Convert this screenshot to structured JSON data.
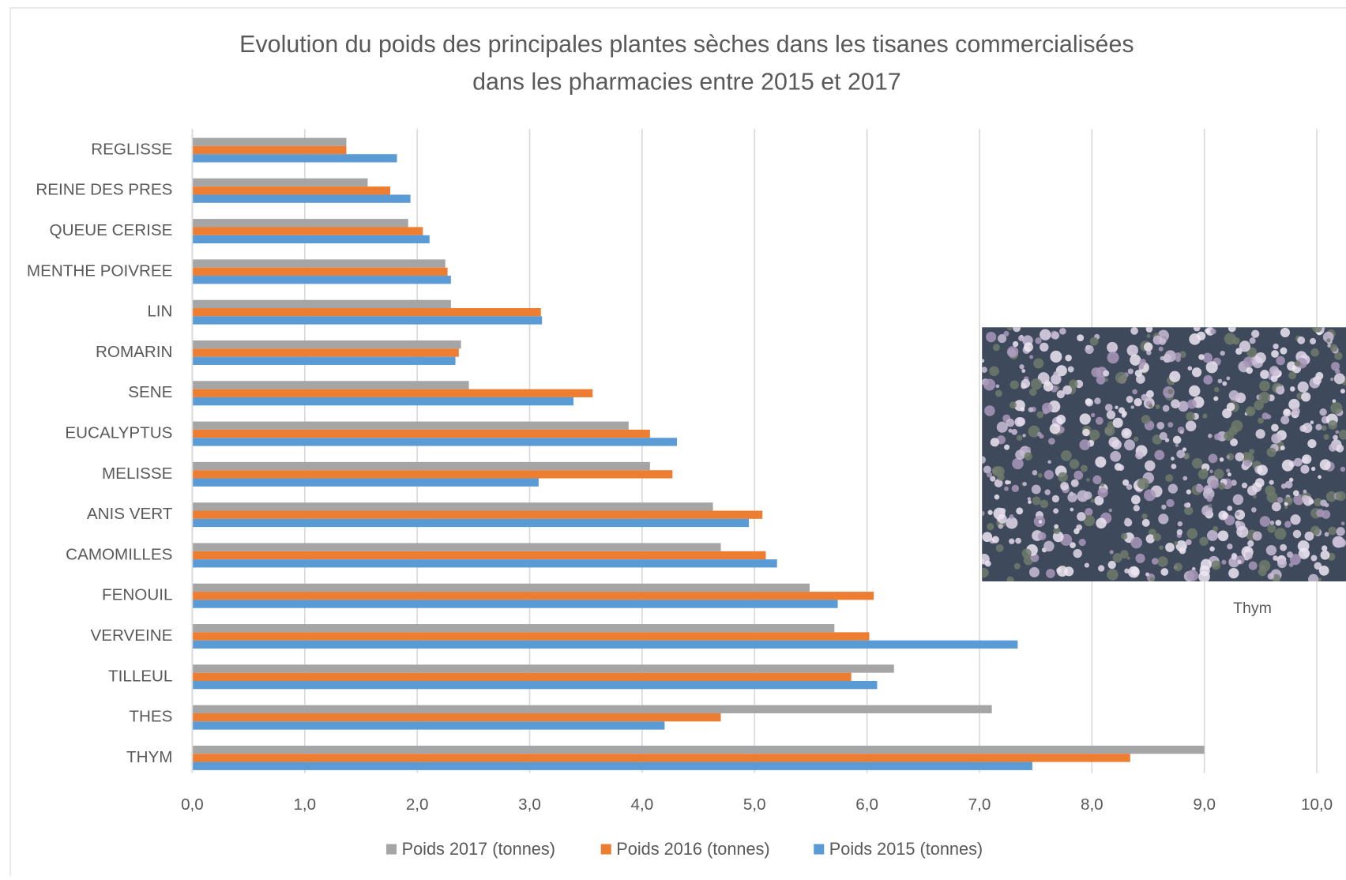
{
  "chart_data": {
    "type": "hbar",
    "title": [
      "Evolution du poids des principales plantes sèches dans les tisanes commercialisées",
      "dans les pharmacies entre 2015 et 2017"
    ],
    "annotation": "Thym",
    "categories": [
      "REGLISSE",
      "REINE DES PRES",
      "QUEUE CERISE",
      "MENTHE POIVREE",
      "LIN",
      "ROMARIN",
      "SENE",
      "EUCALYPTUS",
      "MELISSE",
      "ANIS VERT",
      "CAMOMILLES",
      "FENOUIL",
      "VERVEINE",
      "TILLEUL",
      "THES",
      "THYM"
    ],
    "series": [
      {
        "name": "Poids 2017 (tonnes)",
        "color": "#a5a5a5",
        "values": [
          1.37,
          1.56,
          1.92,
          2.25,
          2.3,
          2.39,
          2.46,
          3.88,
          4.07,
          4.63,
          4.7,
          5.49,
          5.71,
          6.24,
          7.11,
          9.0
        ]
      },
      {
        "name": "Poids 2016 (tonnes)",
        "color": "#ed7d31",
        "values": [
          1.37,
          1.76,
          2.05,
          2.27,
          3.1,
          2.37,
          3.56,
          4.07,
          4.27,
          5.07,
          5.1,
          6.06,
          6.02,
          5.86,
          4.7,
          8.34
        ]
      },
      {
        "name": "Poids 2015 (tonnes)",
        "color": "#5b9bd5",
        "values": [
          1.82,
          1.94,
          2.11,
          2.3,
          3.11,
          2.34,
          3.39,
          4.31,
          3.08,
          4.95,
          5.2,
          5.74,
          7.34,
          6.09,
          4.2,
          7.47
        ]
      }
    ],
    "xlim": [
      0,
      10
    ],
    "xticks": [
      {
        "value": 0,
        "label": "0,0"
      },
      {
        "value": 1,
        "label": "1,0"
      },
      {
        "value": 2,
        "label": "2,0"
      },
      {
        "value": 3,
        "label": "3,0"
      },
      {
        "value": 4,
        "label": "4,0"
      },
      {
        "value": 5,
        "label": "5,0"
      },
      {
        "value": 6,
        "label": "6,0"
      },
      {
        "value": 7,
        "label": "7,0"
      },
      {
        "value": 8,
        "label": "8,0"
      },
      {
        "value": 9,
        "label": "9,0"
      },
      {
        "value": 10,
        "label": "10,0"
      }
    ],
    "grid": true,
    "legend": "bottom"
  }
}
